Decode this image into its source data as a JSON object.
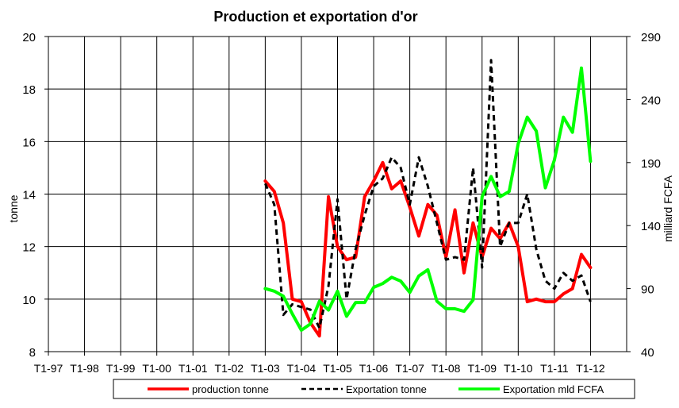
{
  "chart_data": {
    "type": "line",
    "title": "Production et exportation d'or",
    "ylabel_left": "tonne",
    "ylabel_right": "milliard FCFA",
    "xlabel": "",
    "ylim_left": [
      8,
      20
    ],
    "yticks_left": [
      "8",
      "10",
      "12",
      "14",
      "16",
      "18",
      "20"
    ],
    "ylim_right": [
      40,
      290
    ],
    "yticks_right": [
      "40",
      "90",
      "140",
      "190",
      "240",
      "290"
    ],
    "x_categories": [
      "T1-97",
      "T1-98",
      "T1-99",
      "T1-00",
      "T1-01",
      "T1-02",
      "T1-03",
      "T1-04",
      "T1-05",
      "T1-06",
      "T1-07",
      "T1-08",
      "T1-09",
      "T1-10",
      "T1-11",
      "T1-12"
    ],
    "grid": true,
    "legend_position": "bottom",
    "series": [
      {
        "name": "production tonne",
        "axis": "left",
        "color": "#ff0000",
        "style": "solid",
        "x": [
          2003.0,
          2003.25,
          2003.5,
          2003.75,
          2004.0,
          2004.25,
          2004.5,
          2004.75,
          2005.0,
          2005.25,
          2005.5,
          2005.75,
          2006.0,
          2006.25,
          2006.5,
          2006.75,
          2007.0,
          2007.25,
          2007.5,
          2007.75,
          2008.0,
          2008.25,
          2008.5,
          2008.75,
          2009.0,
          2009.25,
          2009.5,
          2009.75,
          2010.0,
          2010.25,
          2010.5,
          2010.75,
          2011.0,
          2011.25,
          2011.5,
          2011.75,
          2012.0
        ],
        "y": [
          14.5,
          14.1,
          12.9,
          10.0,
          9.9,
          9.1,
          8.6,
          13.9,
          12.0,
          11.5,
          11.6,
          13.9,
          14.5,
          15.2,
          14.2,
          14.5,
          13.5,
          12.4,
          13.6,
          13.2,
          11.6,
          13.4,
          11.0,
          12.9,
          11.6,
          12.7,
          12.3,
          12.9,
          12.0,
          9.9,
          10.0,
          9.9,
          9.9,
          10.2,
          10.4,
          11.7,
          11.2
        ]
      },
      {
        "name": "Exportation tonne",
        "axis": "left",
        "color": "#000000",
        "style": "dashed",
        "x": [
          2003.0,
          2003.25,
          2003.5,
          2003.75,
          2004.0,
          2004.25,
          2004.5,
          2004.75,
          2005.0,
          2005.25,
          2005.5,
          2005.75,
          2006.0,
          2006.25,
          2006.5,
          2006.75,
          2007.0,
          2007.25,
          2007.5,
          2007.75,
          2008.0,
          2008.25,
          2008.5,
          2008.75,
          2009.0,
          2009.25,
          2009.5,
          2009.75,
          2010.0,
          2010.25,
          2010.5,
          2010.75,
          2011.0,
          2011.25,
          2011.5,
          2011.75,
          2012.0
        ],
        "y": [
          14.4,
          13.6,
          9.4,
          9.8,
          9.7,
          9.6,
          8.9,
          10.5,
          13.8,
          10.0,
          11.9,
          13.2,
          14.3,
          14.6,
          15.4,
          15.0,
          13.6,
          15.4,
          14.3,
          12.9,
          11.5,
          11.6,
          11.5,
          15.0,
          11.2,
          19.1,
          12.0,
          12.9,
          12.9,
          14.0,
          11.9,
          10.7,
          10.4,
          11.0,
          10.7,
          10.9,
          9.9
        ]
      },
      {
        "name": "Exportation mld FCFA",
        "axis": "right",
        "color": "#00ff00",
        "style": "solid",
        "x": [
          2003.0,
          2003.25,
          2003.5,
          2003.75,
          2004.0,
          2004.25,
          2004.5,
          2004.75,
          2005.0,
          2005.25,
          2005.5,
          2005.75,
          2006.0,
          2006.25,
          2006.5,
          2006.75,
          2007.0,
          2007.25,
          2007.5,
          2007.75,
          2008.0,
          2008.25,
          2008.5,
          2008.75,
          2009.0,
          2009.25,
          2009.5,
          2009.75,
          2010.0,
          2010.25,
          2010.5,
          2010.75,
          2011.0,
          2011.25,
          2011.5,
          2011.75,
          2012.0
        ],
        "y": [
          90,
          88,
          84,
          70,
          57,
          62,
          80,
          73,
          88,
          68,
          79,
          79,
          91,
          94,
          99,
          96,
          87,
          100,
          105,
          80,
          74,
          74,
          72,
          81,
          163,
          179,
          163,
          167,
          205,
          226,
          215,
          170,
          192,
          226,
          214,
          265,
          191
        ]
      }
    ]
  }
}
